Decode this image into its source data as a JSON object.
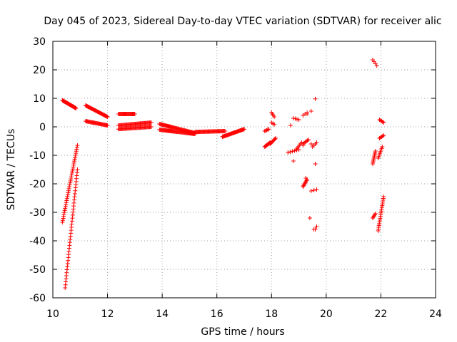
{
  "chart_data": {
    "type": "scatter",
    "title": "Day 045 of 2023, Sidereal Day-to-day VTEC variation (SDTVAR) for receiver alic",
    "xlabel": "GPS time / hours",
    "ylabel": "SDTVAR / TECUs",
    "xlim": [
      10,
      24
    ],
    "ylim": [
      -60,
      30
    ],
    "xticks": [
      "10",
      "12",
      "14",
      "16",
      "18",
      "20",
      "22",
      "24"
    ],
    "yticks": [
      "-60",
      "-50",
      "-40",
      "-30",
      "-20",
      "-10",
      "0",
      "10",
      "20",
      "30"
    ],
    "grid": true,
    "marker": "+",
    "series_color": "#ff0000",
    "segments": [
      {
        "x0": 10.35,
        "x1": 10.85,
        "y0": 9.3,
        "y1": 6.5,
        "n": 30
      },
      {
        "x0": 10.35,
        "x1": 10.9,
        "y0": -33.5,
        "y1": -6.5,
        "n": 40
      },
      {
        "x0": 10.45,
        "x1": 10.9,
        "y0": -56.5,
        "y1": -15.0,
        "n": 40
      },
      {
        "x0": 11.2,
        "x1": 12.0,
        "y0": 7.5,
        "y1": 3.5,
        "n": 35
      },
      {
        "x0": 11.2,
        "x1": 12.0,
        "y0": 2.0,
        "y1": 0.5,
        "n": 30
      },
      {
        "x0": 12.4,
        "x1": 13.0,
        "y0": 4.5,
        "y1": 4.5,
        "n": 25
      },
      {
        "x0": 12.4,
        "x1": 13.6,
        "y0": 0.5,
        "y1": 1.5,
        "n": 40
      },
      {
        "x0": 12.4,
        "x1": 13.6,
        "y0": -0.8,
        "y1": 0.0,
        "n": 40
      },
      {
        "x0": 13.9,
        "x1": 15.2,
        "y0": 1.0,
        "y1": -2.2,
        "n": 50
      },
      {
        "x0": 13.9,
        "x1": 15.2,
        "y0": -1.0,
        "y1": -2.5,
        "n": 50
      },
      {
        "x0": 15.2,
        "x1": 16.3,
        "y0": -1.8,
        "y1": -1.5,
        "n": 40
      },
      {
        "x0": 16.2,
        "x1": 17.0,
        "y0": -3.5,
        "y1": -0.8,
        "n": 35
      },
      {
        "x0": 17.75,
        "x1": 17.95,
        "y0": -7.0,
        "y1": -5.5,
        "n": 10
      },
      {
        "x0": 17.75,
        "x1": 17.9,
        "y0": -1.5,
        "y1": -0.8,
        "n": 5
      },
      {
        "x0": 17.95,
        "x1": 18.15,
        "y0": -6.0,
        "y1": -4.0,
        "n": 8
      },
      {
        "x0": 18.0,
        "x1": 18.1,
        "y0": 5.0,
        "y1": 3.5,
        "n": 4
      },
      {
        "x0": 18.0,
        "x1": 18.1,
        "y0": 1.5,
        "y1": 0.8,
        "n": 3
      },
      {
        "x0": 18.6,
        "x1": 19.0,
        "y0": -9.0,
        "y1": -8.0,
        "n": 6
      },
      {
        "x0": 18.8,
        "x1": 19.0,
        "y0": 3.0,
        "y1": 2.5,
        "n": 4
      },
      {
        "x0": 18.9,
        "x1": 19.1,
        "y0": -8.0,
        "y1": -5.5,
        "n": 6
      },
      {
        "x0": 19.15,
        "x1": 19.35,
        "y0": -6.0,
        "y1": -4.5,
        "n": 6
      },
      {
        "x0": 19.15,
        "x1": 19.3,
        "y0": -21.0,
        "y1": -18.5,
        "n": 8
      },
      {
        "x0": 19.15,
        "x1": 19.3,
        "y0": 4.0,
        "y1": 5.0,
        "n": 3
      },
      {
        "x0": 19.45,
        "x1": 19.65,
        "y0": -22.5,
        "y1": -22.0,
        "n": 3
      },
      {
        "x0": 19.6,
        "x1": 19.65,
        "y0": -36.0,
        "y1": -35.0,
        "n": 2
      },
      {
        "x0": 19.5,
        "x1": 19.65,
        "y0": -7.0,
        "y1": -5.5,
        "n": 4
      },
      {
        "x0": 21.7,
        "x1": 21.85,
        "y0": 23.5,
        "y1": 21.5,
        "n": 4
      },
      {
        "x0": 21.7,
        "x1": 21.8,
        "y0": -13.0,
        "y1": -8.5,
        "n": 10
      },
      {
        "x0": 21.7,
        "x1": 21.8,
        "y0": -32.0,
        "y1": -30.5,
        "n": 5
      },
      {
        "x0": 21.9,
        "x1": 22.05,
        "y0": -11.0,
        "y1": -7.0,
        "n": 8
      },
      {
        "x0": 21.9,
        "x1": 22.1,
        "y0": -36.5,
        "y1": -24.5,
        "n": 20
      },
      {
        "x0": 21.95,
        "x1": 22.1,
        "y0": -4.0,
        "y1": -3.0,
        "n": 5
      },
      {
        "x0": 21.95,
        "x1": 22.1,
        "y0": 2.5,
        "y1": 1.5,
        "n": 5
      }
    ],
    "points": [
      [
        18.7,
        0.5
      ],
      [
        18.8,
        -12.0
      ],
      [
        19.3,
        4.5
      ],
      [
        19.45,
        5.5
      ],
      [
        19.6,
        9.8
      ],
      [
        19.4,
        -32.0
      ],
      [
        19.6,
        -13.0
      ],
      [
        19.45,
        -6.0
      ],
      [
        19.15,
        -6.5
      ],
      [
        19.25,
        -18.0
      ],
      [
        19.55,
        -36.0
      ]
    ]
  }
}
